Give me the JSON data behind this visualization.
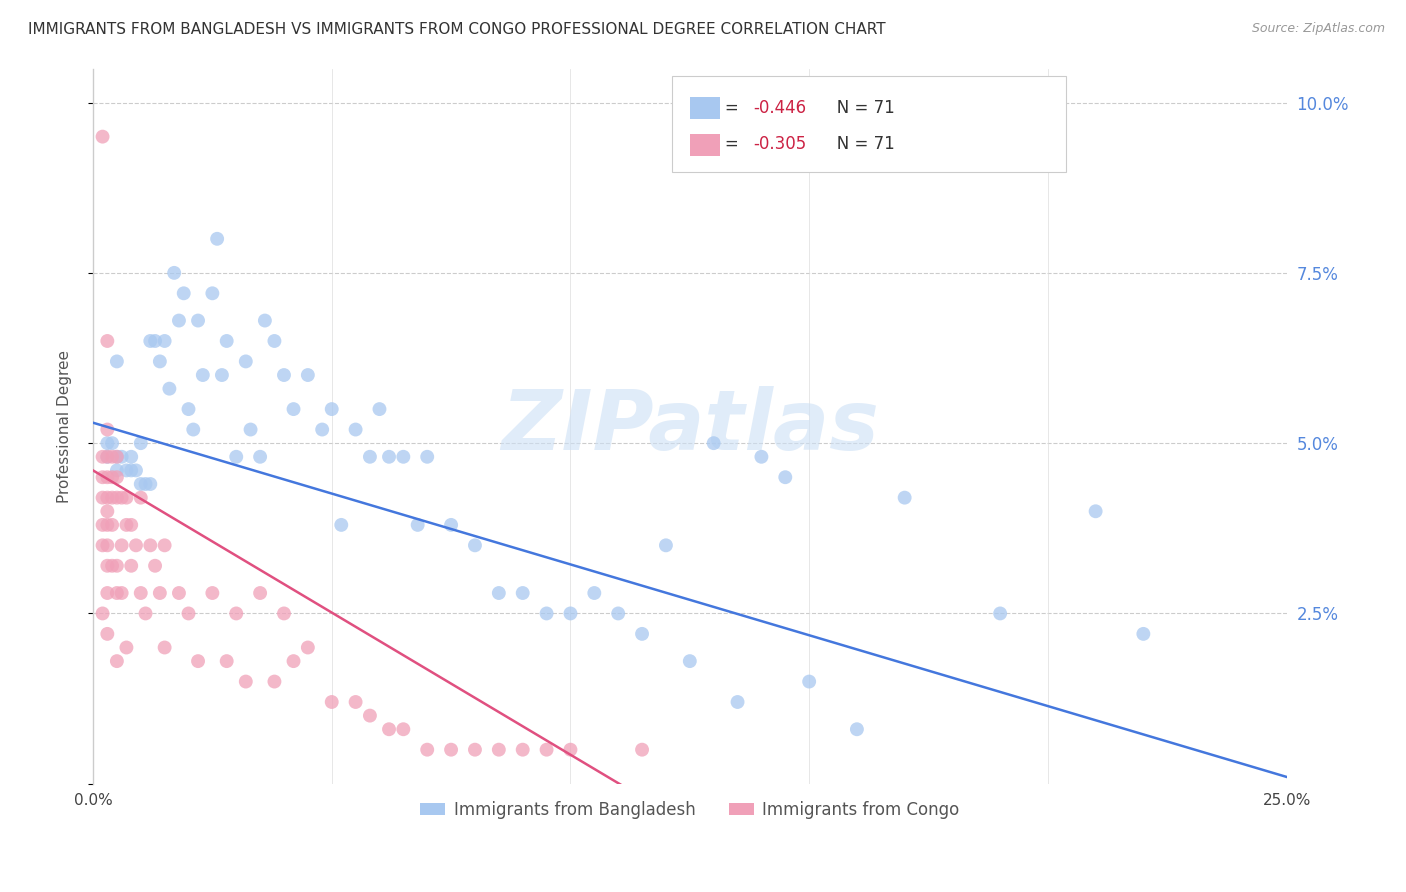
{
  "title": "IMMIGRANTS FROM BANGLADESH VS IMMIGRANTS FROM CONGO PROFESSIONAL DEGREE CORRELATION CHART",
  "source": "Source: ZipAtlas.com",
  "ylabel": "Professional Degree",
  "xlabel_blue": "Immigrants from Bangladesh",
  "xlabel_pink": "Immigrants from Congo",
  "legend_blue_R": "-0.446",
  "legend_blue_N": "71",
  "legend_pink_R": "-0.305",
  "legend_pink_N": "71",
  "xlim": [
    0.0,
    0.25
  ],
  "ylim": [
    0.0,
    0.105
  ],
  "yticks": [
    0.0,
    0.025,
    0.05,
    0.075,
    0.1
  ],
  "ytick_labels_right": [
    "",
    "2.5%",
    "5.0%",
    "7.5%",
    "10.0%"
  ],
  "xticks": [
    0.0,
    0.05,
    0.1,
    0.15,
    0.2,
    0.25
  ],
  "xtick_labels": [
    "0.0%",
    "",
    "",
    "",
    "",
    "25.0%"
  ],
  "blue_color": "#a8c8f0",
  "pink_color": "#f0a0b8",
  "line_blue": "#4477dd",
  "line_pink": "#e05080",
  "watermark_text": "ZIPatlas",
  "blue_line_x0": 0.0,
  "blue_line_x1": 0.25,
  "blue_line_y0": 0.053,
  "blue_line_y1": 0.001,
  "pink_line_x0": 0.0,
  "pink_line_x1": 0.115,
  "pink_line_y0": 0.046,
  "pink_line_y1": -0.002,
  "blue_x": [
    0.003,
    0.003,
    0.004,
    0.005,
    0.005,
    0.005,
    0.006,
    0.007,
    0.008,
    0.008,
    0.009,
    0.01,
    0.01,
    0.011,
    0.012,
    0.012,
    0.013,
    0.014,
    0.015,
    0.016,
    0.017,
    0.018,
    0.019,
    0.02,
    0.021,
    0.022,
    0.023,
    0.025,
    0.026,
    0.027,
    0.028,
    0.03,
    0.032,
    0.033,
    0.035,
    0.036,
    0.038,
    0.04,
    0.042,
    0.045,
    0.048,
    0.05,
    0.052,
    0.055,
    0.058,
    0.06,
    0.062,
    0.065,
    0.068,
    0.07,
    0.075,
    0.08,
    0.085,
    0.09,
    0.095,
    0.1,
    0.105,
    0.11,
    0.115,
    0.12,
    0.125,
    0.13,
    0.135,
    0.14,
    0.145,
    0.15,
    0.16,
    0.17,
    0.19,
    0.21,
    0.22
  ],
  "blue_y": [
    0.05,
    0.048,
    0.05,
    0.062,
    0.048,
    0.046,
    0.048,
    0.046,
    0.046,
    0.048,
    0.046,
    0.044,
    0.05,
    0.044,
    0.044,
    0.065,
    0.065,
    0.062,
    0.065,
    0.058,
    0.075,
    0.068,
    0.072,
    0.055,
    0.052,
    0.068,
    0.06,
    0.072,
    0.08,
    0.06,
    0.065,
    0.048,
    0.062,
    0.052,
    0.048,
    0.068,
    0.065,
    0.06,
    0.055,
    0.06,
    0.052,
    0.055,
    0.038,
    0.052,
    0.048,
    0.055,
    0.048,
    0.048,
    0.038,
    0.048,
    0.038,
    0.035,
    0.028,
    0.028,
    0.025,
    0.025,
    0.028,
    0.025,
    0.022,
    0.035,
    0.018,
    0.05,
    0.012,
    0.048,
    0.045,
    0.015,
    0.008,
    0.042,
    0.025,
    0.04,
    0.022
  ],
  "pink_x": [
    0.002,
    0.002,
    0.002,
    0.002,
    0.002,
    0.002,
    0.002,
    0.003,
    0.003,
    0.003,
    0.003,
    0.003,
    0.003,
    0.003,
    0.003,
    0.003,
    0.003,
    0.003,
    0.004,
    0.004,
    0.004,
    0.004,
    0.004,
    0.005,
    0.005,
    0.005,
    0.005,
    0.005,
    0.005,
    0.006,
    0.006,
    0.006,
    0.007,
    0.007,
    0.007,
    0.008,
    0.008,
    0.009,
    0.01,
    0.01,
    0.011,
    0.012,
    0.013,
    0.014,
    0.015,
    0.015,
    0.018,
    0.02,
    0.022,
    0.025,
    0.028,
    0.03,
    0.032,
    0.035,
    0.038,
    0.04,
    0.042,
    0.045,
    0.05,
    0.055,
    0.058,
    0.062,
    0.065,
    0.07,
    0.075,
    0.08,
    0.085,
    0.09,
    0.095,
    0.1,
    0.115
  ],
  "pink_y": [
    0.095,
    0.048,
    0.045,
    0.042,
    0.038,
    0.035,
    0.025,
    0.065,
    0.052,
    0.048,
    0.045,
    0.042,
    0.04,
    0.038,
    0.035,
    0.032,
    0.028,
    0.022,
    0.048,
    0.045,
    0.042,
    0.038,
    0.032,
    0.048,
    0.045,
    0.042,
    0.032,
    0.028,
    0.018,
    0.042,
    0.035,
    0.028,
    0.042,
    0.038,
    0.02,
    0.038,
    0.032,
    0.035,
    0.042,
    0.028,
    0.025,
    0.035,
    0.032,
    0.028,
    0.035,
    0.02,
    0.028,
    0.025,
    0.018,
    0.028,
    0.018,
    0.025,
    0.015,
    0.028,
    0.015,
    0.025,
    0.018,
    0.02,
    0.012,
    0.012,
    0.01,
    0.008,
    0.008,
    0.005,
    0.005,
    0.005,
    0.005,
    0.005,
    0.005,
    0.005,
    0.005
  ]
}
